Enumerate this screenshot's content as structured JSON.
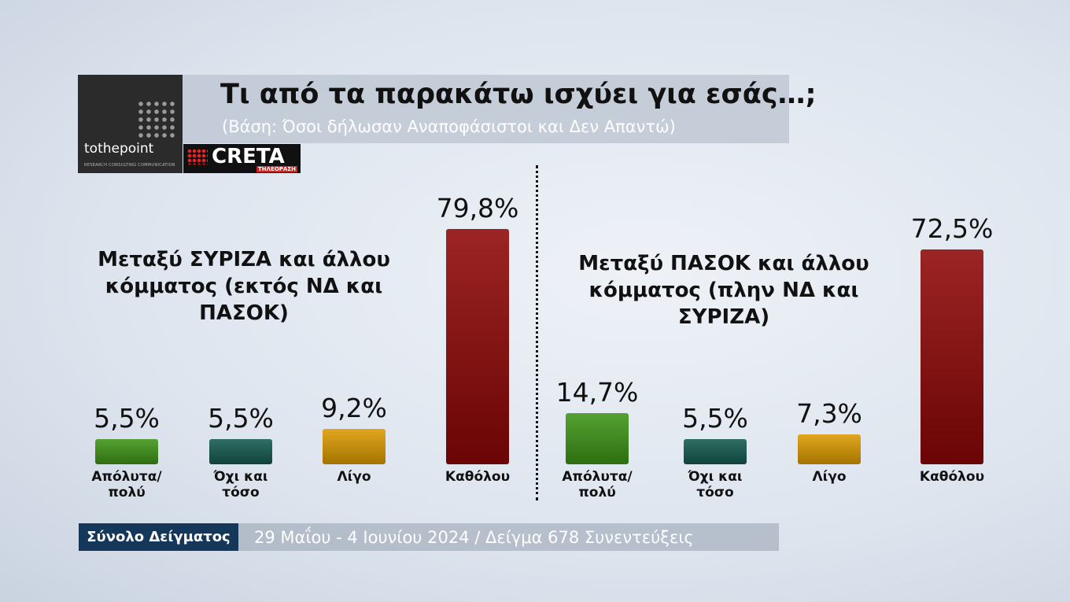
{
  "title": "Τι από τα παρακάτω ισχύει για εσάς…;",
  "subtitle": "(Βάση: Όσοι δήλωσαν Αναποφάσιστοι και Δεν Απαντώ)",
  "logos": {
    "tothepoint": "tothepoint",
    "tothepoint_tagline": "RESEARCH CONSULTING COMMUNICATION",
    "creta": "CRETA",
    "creta_tagline": "ΤΗΛΕΟΡΑΣΗ"
  },
  "footer": {
    "label": "Σύνολο Δείγματος",
    "text": "29 Μαΐου - 4 Ιουνίου 2024 / Δείγμα 678 Συνεντεύξεις"
  },
  "chart_data": [
    {
      "type": "bar",
      "title": "Μεταξύ ΣΥΡΙΖΑ και άλλου κόμματος (εκτός ΝΔ και ΠΑΣΟΚ)",
      "categories": [
        "Απόλυτα/ πολύ",
        "Όχι και τόσο",
        "Λίγο",
        "Καθόλου"
      ],
      "values": [
        5.5,
        5.5,
        9.2,
        79.8
      ],
      "value_labels": [
        "5,5%",
        "5,5%",
        "9,2%",
        "79,8%"
      ],
      "colors": [
        "#3d9416",
        "#135a4e",
        "#dc9a00",
        "#8e0606"
      ]
    },
    {
      "type": "bar",
      "title": "Μεταξύ ΠΑΣΟΚ και άλλου κόμματος (πλην ΝΔ και ΣΥΡΙΖΑ)",
      "categories": [
        "Απόλυτα/ πολύ",
        "Όχι και τόσο",
        "Λίγο",
        "Καθόλου"
      ],
      "values": [
        14.7,
        5.5,
        7.3,
        72.5
      ],
      "value_labels": [
        "14,7%",
        "5,5%",
        "7,3%",
        "72,5%"
      ],
      "colors": [
        "#3d9416",
        "#135a4e",
        "#dc9a00",
        "#8e0606"
      ]
    }
  ]
}
